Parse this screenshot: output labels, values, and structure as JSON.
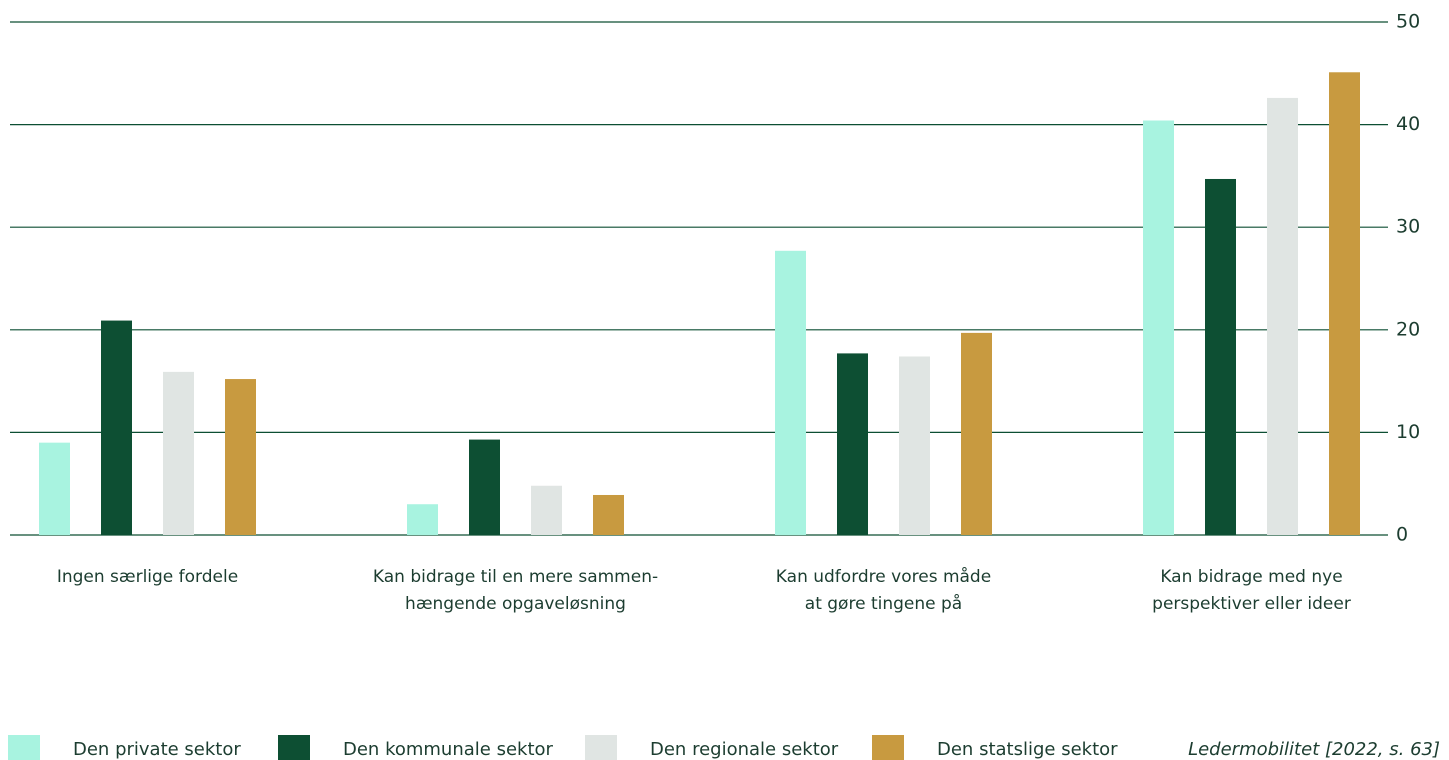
{
  "chart_data": {
    "type": "bar",
    "categories": [
      "Ingen særlige fordele",
      "Kan bidrage til en mere sammen-\nhængende opgaveløsning",
      "Kan udfordre vores måde\nat gøre tingene på",
      "Kan bidrage med nye\nperspektiver eller ideer"
    ],
    "series": [
      {
        "name": "Den private sektor",
        "color": "#a8f3e0",
        "values": [
          9,
          3,
          27.7,
          40.4
        ]
      },
      {
        "name": "Den kommunale sektor",
        "color": "#0d4f33",
        "values": [
          20.9,
          9.3,
          17.7,
          34.7
        ]
      },
      {
        "name": "Den regionale sektor",
        "color": "#e0e5e3",
        "values": [
          15.9,
          4.8,
          17.4,
          42.6
        ]
      },
      {
        "name": "Den statslige sektor",
        "color": "#c89a40",
        "values": [
          15.2,
          3.9,
          19.7,
          45.1
        ]
      }
    ],
    "ylim": [
      0,
      50
    ],
    "yticks": [
      0,
      10,
      20,
      30,
      40,
      50
    ],
    "grid": true,
    "y_axis_side": "right",
    "source": "Ledermobilitet [2022, s. 63]"
  }
}
